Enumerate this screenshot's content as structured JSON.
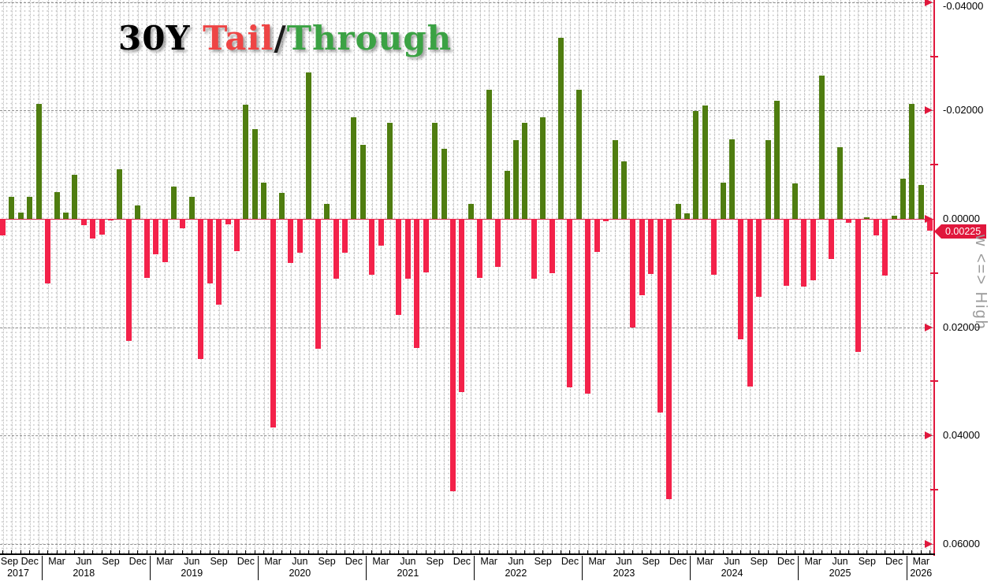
{
  "title": {
    "parts": [
      {
        "text": "30Y ",
        "color": "#000000"
      },
      {
        "text": "Tail",
        "color": "#ee4545"
      },
      {
        "text": "/",
        "color": "#1a1a1a"
      },
      {
        "text": "Through",
        "color": "#3ba244"
      }
    ]
  },
  "y_axis": {
    "badge_value": "0.00225",
    "side_label": "w <=> High",
    "ticks": [
      {
        "label": "-0.04000",
        "value": -0.04
      },
      {
        "label": "-0.02000",
        "value": -0.02
      },
      {
        "label": "0.00000",
        "value": 0.0
      },
      {
        "label": "0.02000",
        "value": 0.02
      },
      {
        "label": "0.04000",
        "value": 0.04
      },
      {
        "label": "0.06000",
        "value": 0.06
      }
    ],
    "minor_tick_values": [
      -0.03,
      -0.01,
      0.01,
      0.03,
      0.05
    ],
    "axis_color": "#e0173c"
  },
  "x_axis": {
    "labeled_months": [
      "Mar",
      "Jun",
      "Sep",
      "Dec"
    ],
    "years": [
      "2017",
      "2018",
      "2019",
      "2020",
      "2021",
      "2022",
      "2023",
      "2024",
      "2025",
      "2026"
    ]
  },
  "chart_data": {
    "type": "bar",
    "title": "30Y Tail/Through",
    "orientation": "inverted-y",
    "ylim_top_to_bottom": [
      -0.04,
      0.06
    ],
    "zero_value": 0.0,
    "positive_meaning": "Tail (red, plotted downward)",
    "negative_meaning": "Through (green, plotted upward)",
    "colors": {
      "through_green": "#4f7d10",
      "tail_red": "#f3224a"
    },
    "last_value_badge": 0.00225,
    "months": [
      "2017-09",
      "2017-10",
      "2017-11",
      "2017-12",
      "2018-01",
      "2018-02",
      "2018-03",
      "2018-04",
      "2018-05",
      "2018-06",
      "2018-07",
      "2018-08",
      "2018-09",
      "2018-10",
      "2018-11",
      "2018-12",
      "2019-01",
      "2019-02",
      "2019-03",
      "2019-04",
      "2019-05",
      "2019-06",
      "2019-07",
      "2019-08",
      "2019-09",
      "2019-10",
      "2019-11",
      "2019-12",
      "2020-01",
      "2020-02",
      "2020-03",
      "2020-04",
      "2020-05",
      "2020-06",
      "2020-07",
      "2020-08",
      "2020-09",
      "2020-10",
      "2020-11",
      "2020-12",
      "2021-01",
      "2021-02",
      "2021-03",
      "2021-04",
      "2021-05",
      "2021-06",
      "2021-07",
      "2021-08",
      "2021-09",
      "2021-10",
      "2021-11",
      "2021-12",
      "2022-01",
      "2022-02",
      "2022-03",
      "2022-04",
      "2022-05",
      "2022-06",
      "2022-07",
      "2022-08",
      "2022-09",
      "2022-10",
      "2022-11",
      "2022-12",
      "2023-01",
      "2023-02",
      "2023-03",
      "2023-04",
      "2023-05",
      "2023-06",
      "2023-07",
      "2023-08",
      "2023-09",
      "2023-10",
      "2023-11",
      "2023-12",
      "2024-01",
      "2024-02",
      "2024-03",
      "2024-04",
      "2024-05",
      "2024-06",
      "2024-07",
      "2024-08",
      "2024-09",
      "2024-10",
      "2024-11",
      "2024-12",
      "2025-01",
      "2025-02",
      "2025-03",
      "2025-04",
      "2025-05",
      "2025-06",
      "2025-07",
      "2025-08",
      "2025-09",
      "2025-10",
      "2025-11",
      "2025-12",
      "2026-01",
      "2026-02",
      "2026-03",
      "2026-04"
    ],
    "values": [
      0.003,
      -0.004,
      -0.0012,
      -0.004,
      -0.0212,
      0.0119,
      -0.005,
      -0.0012,
      -0.0081,
      0.0012,
      0.0037,
      0.0029,
      0.0003,
      -0.0092,
      0.0225,
      -0.0025,
      0.0109,
      0.0065,
      0.008,
      -0.0059,
      0.0018,
      -0.004,
      0.0259,
      0.0119,
      0.0158,
      0.001,
      0.0059,
      -0.0211,
      -0.0166,
      -0.0067,
      0.0385,
      -0.0048,
      0.0082,
      0.0062,
      -0.027,
      0.024,
      -0.0027,
      0.0111,
      0.0062,
      -0.0187,
      -0.0137,
      0.0103,
      0.005,
      -0.0178,
      0.0177,
      0.0111,
      0.0239,
      0.0099,
      -0.0178,
      -0.0129,
      0.0503,
      0.032,
      -0.0028,
      0.0109,
      -0.0239,
      0.0089,
      -0.0088,
      -0.0146,
      -0.0177,
      0.0111,
      -0.0187,
      0.0101,
      -0.0335,
      0.0311,
      -0.0238,
      0.0323,
      0.0061,
      0.0005,
      -0.0146,
      -0.0106,
      0.02,
      0.0141,
      0.0102,
      0.0357,
      0.0518,
      -0.0028,
      -0.001,
      -0.0199,
      -0.021,
      0.0103,
      -0.0067,
      -0.0147,
      0.0222,
      0.031,
      0.0144,
      -0.0145,
      -0.0218,
      0.0123,
      -0.0065,
      0.0125,
      0.0114,
      -0.0264,
      0.0074,
      -0.0132,
      0.0007,
      0.0246,
      -0.0003,
      0.003,
      0.0104,
      -0.0006,
      -0.0074,
      -0.0212,
      -0.0063,
      0.00225
    ]
  }
}
